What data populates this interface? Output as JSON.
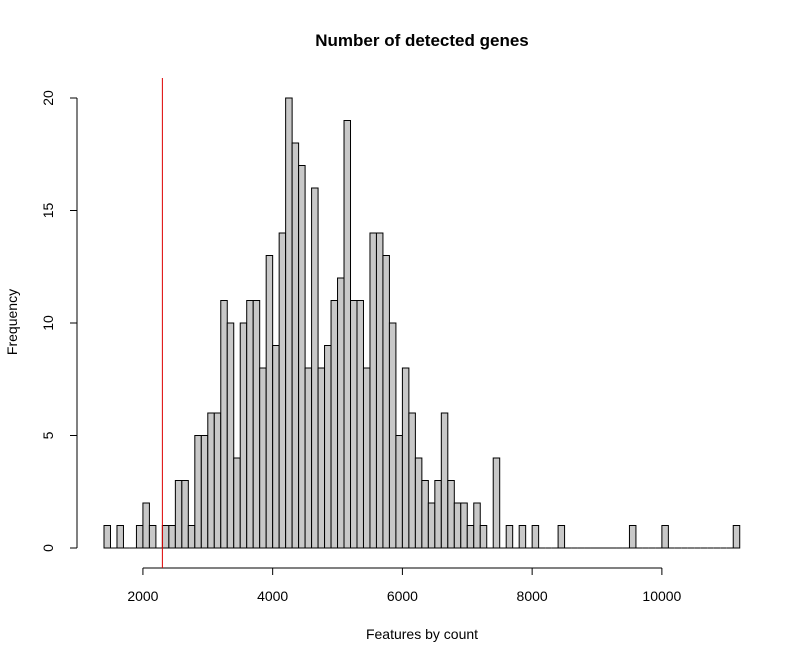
{
  "chart_data": {
    "type": "bar",
    "title": "Number of detected genes",
    "xlabel": "Features by count",
    "ylabel": "Frequency",
    "bin_width": 100,
    "bin_start": 1400,
    "counts": [
      1,
      0,
      1,
      0,
      0,
      1,
      2,
      1,
      0,
      1,
      1,
      3,
      3,
      1,
      5,
      5,
      6,
      6,
      11,
      10,
      4,
      10,
      11,
      11,
      8,
      13,
      9,
      14,
      20,
      18,
      17,
      8,
      16,
      8,
      9,
      11,
      12,
      19,
      11,
      11,
      8,
      14,
      14,
      13,
      10,
      5,
      8,
      6,
      4,
      3,
      2,
      3,
      6,
      3,
      2,
      2,
      1,
      2,
      1,
      0,
      4,
      0,
      1,
      0,
      1,
      0,
      1,
      0,
      0,
      0,
      1,
      0,
      0,
      0,
      0,
      0,
      0,
      0,
      0,
      0,
      0,
      1,
      0,
      0,
      0,
      0,
      1,
      0,
      0,
      0,
      0,
      0,
      0,
      0,
      0,
      0,
      0,
      1
    ],
    "xlim": [
      1400,
      11200
    ],
    "ylim": [
      0,
      20
    ],
    "xticks": [
      2000,
      4000,
      6000,
      8000,
      10000
    ],
    "yticks": [
      0,
      5,
      10,
      15,
      20
    ],
    "vline": {
      "x": 2300,
      "color": "#dd0000"
    },
    "bar_color": "#c8c8c8",
    "grid": false,
    "legend": "none"
  }
}
